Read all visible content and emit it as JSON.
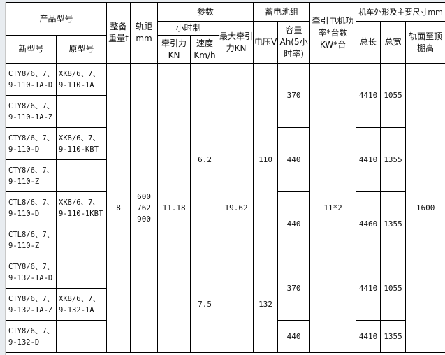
{
  "header": {
    "product_model": "产品型号",
    "new_model": "新型号",
    "orig_model": "原型号",
    "weight": "整备重量t",
    "gauge": "轨距mm",
    "params": "参数",
    "hourly": "小时制",
    "traction": "牵引力KN",
    "speed": "速度Km/h",
    "max_traction": "最大牵引力KN",
    "battery": "蓄电池组",
    "voltage": "电压V",
    "capacity": "容量Ah(5小时率)",
    "motor": "牵引电机功率*台数KW*台",
    "dims": "机车外形及主要尺寸mm",
    "length": "总长",
    "width": "总宽",
    "height": "轨面至顶棚高"
  },
  "rows": [
    {
      "new": "CTY8/6、7、 9-110-1A-D",
      "orig": "XK8/6、7、 9-110-1A"
    },
    {
      "new": "CTY8/6、7、 9-110-1A-Z",
      "orig": ""
    },
    {
      "new": "CTY8/6、7、 9-110-D",
      "orig": "XK8/6、7、 9-110-KBT"
    },
    {
      "new": "CTY8/6、7、 9-110-Z",
      "orig": ""
    },
    {
      "new": "CTL8/6、7、 9-110-D",
      "orig": "XK8/6、7、 9-110-1KBT"
    },
    {
      "new": "CTL8/6、7、 9-110-Z",
      "orig": ""
    },
    {
      "new": "CTY8/6、7、 9-132-1A-D",
      "orig": ""
    },
    {
      "new": "CTY8/6、7、 9-132-1A-Z",
      "orig": "XK8/6、7、 9-132-1A"
    },
    {
      "new": "CTY8/6、7、 9-132-D",
      "orig": ""
    }
  ],
  "shared": {
    "weight": "8",
    "gauge": "600 762 900",
    "traction": "11.18",
    "max_traction": "19.62",
    "motor": "11*2",
    "height": "1600"
  },
  "speed": [
    "6.2",
    "7.5"
  ],
  "voltage": [
    "110",
    "132"
  ],
  "capacity": [
    "370",
    "440",
    "440",
    "370",
    "440"
  ],
  "length": [
    "4410",
    "4410",
    "4460",
    "4410",
    "4410"
  ],
  "width": [
    "1055",
    "1355",
    "1355",
    "1055",
    "1355"
  ]
}
